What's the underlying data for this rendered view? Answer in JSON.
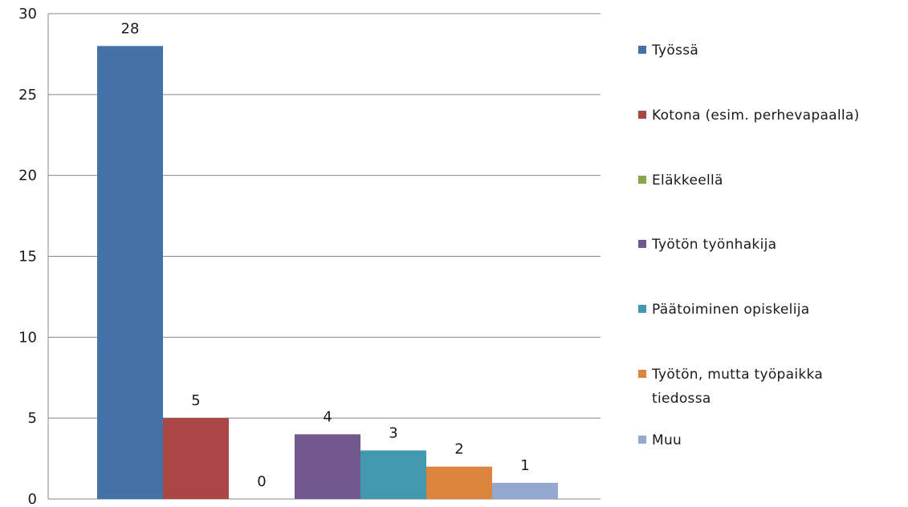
{
  "chart_data": {
    "type": "bar",
    "title": "",
    "xlabel": "",
    "ylabel": "",
    "ylim": [
      0,
      30
    ],
    "yticks": [
      0,
      5,
      10,
      15,
      20,
      25,
      30
    ],
    "grid": true,
    "legend_position": "right",
    "series": [
      {
        "name": "Työssä",
        "value": 28,
        "label": "28",
        "color": "#4472A8"
      },
      {
        "name": "Kotona (esim. perhevapaalla)",
        "value": 5,
        "label": "5",
        "color": "#AA4643"
      },
      {
        "name": "Eläkkeellä",
        "value": 0,
        "label": "0",
        "color": "#89A54E"
      },
      {
        "name": "Työtön työnhakija",
        "value": 4,
        "label": "4",
        "color": "#71588F"
      },
      {
        "name": "Päätoiminen opiskelija",
        "value": 3,
        "label": "3",
        "color": "#4198AF"
      },
      {
        "name": "Työtön, mutta työpaikka tiedossa",
        "value": 2,
        "label": "2",
        "color": "#DB843D"
      },
      {
        "name": "Muu",
        "value": 1,
        "label": "1",
        "color": "#93A9CF"
      }
    ]
  },
  "legend_display": [
    [
      "Työssä"
    ],
    [
      "Kotona (esim. perhevapaalla)"
    ],
    [
      "Eläkkeellä"
    ],
    [
      "Työtön työnhakija"
    ],
    [
      "Päätoiminen opiskelija"
    ],
    [
      "Työtön, mutta työpaikka",
      "tiedossa"
    ],
    [
      "Muu"
    ]
  ],
  "colors": {
    "grid": "#878787",
    "text": "#1a1a1a"
  }
}
